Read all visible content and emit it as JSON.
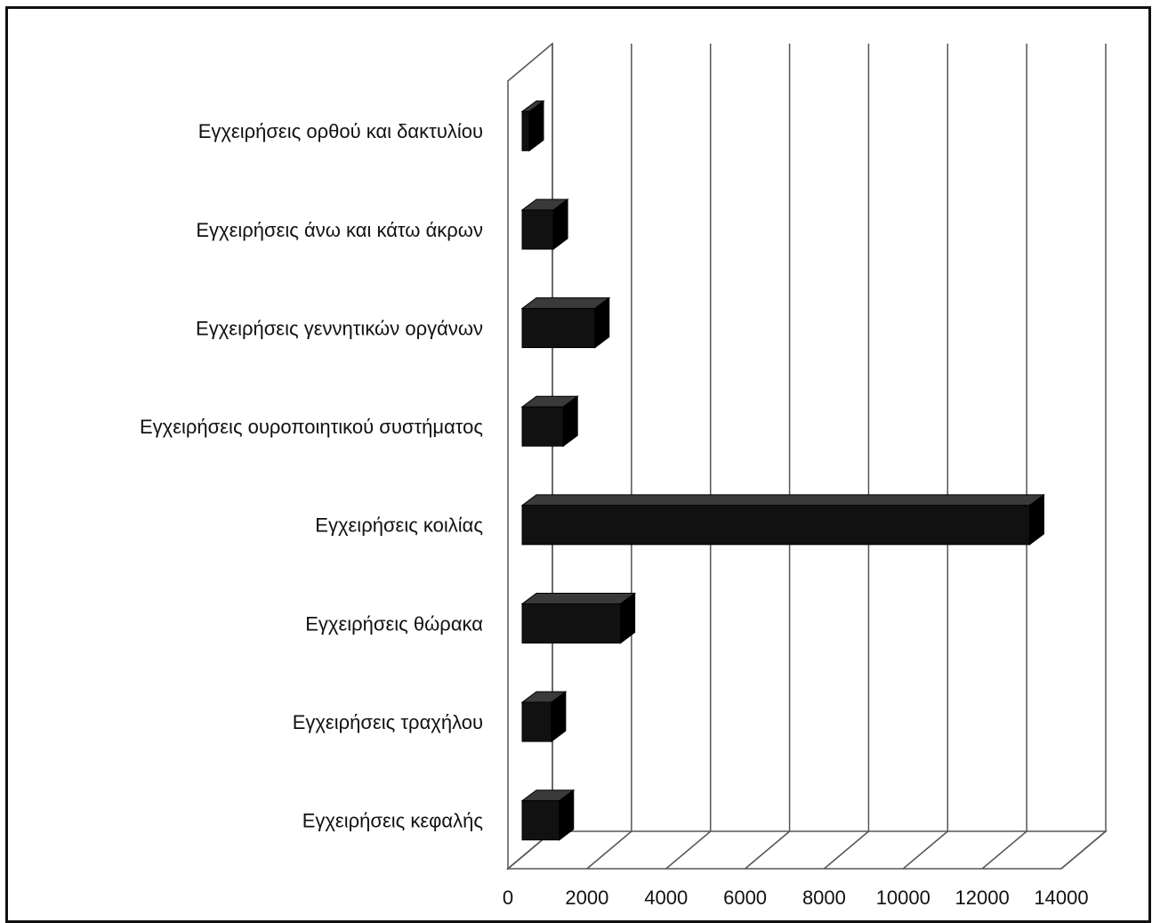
{
  "chart_data": {
    "type": "bar",
    "orientation": "horizontal",
    "style": "3d",
    "categories": [
      "Εγχειρήσεις ορθού και δακτυλίου",
      "Εγχειρήσεις άνω και κάτω άκρων",
      "Εγχειρήσεις γεννητικών οργάνων",
      "Εγχειρήσεις ουροποιητικού συστήματος",
      "Εγχειρήσεις κοιλίας",
      "Εγχειρήσεις θώρακα",
      "Εγχειρήσεις τραχήλου",
      "Εγχειρήσεις κεφαλής"
    ],
    "values": [
      300,
      1150,
      2200,
      1400,
      13200,
      2850,
      1100,
      1300
    ],
    "xlim": [
      0,
      14000
    ],
    "xticks": [
      "0",
      "2000",
      "4000",
      "6000",
      "8000",
      "10000",
      "12000",
      "14000"
    ],
    "bar_color": "#111111",
    "grid": true,
    "legend": "none"
  }
}
